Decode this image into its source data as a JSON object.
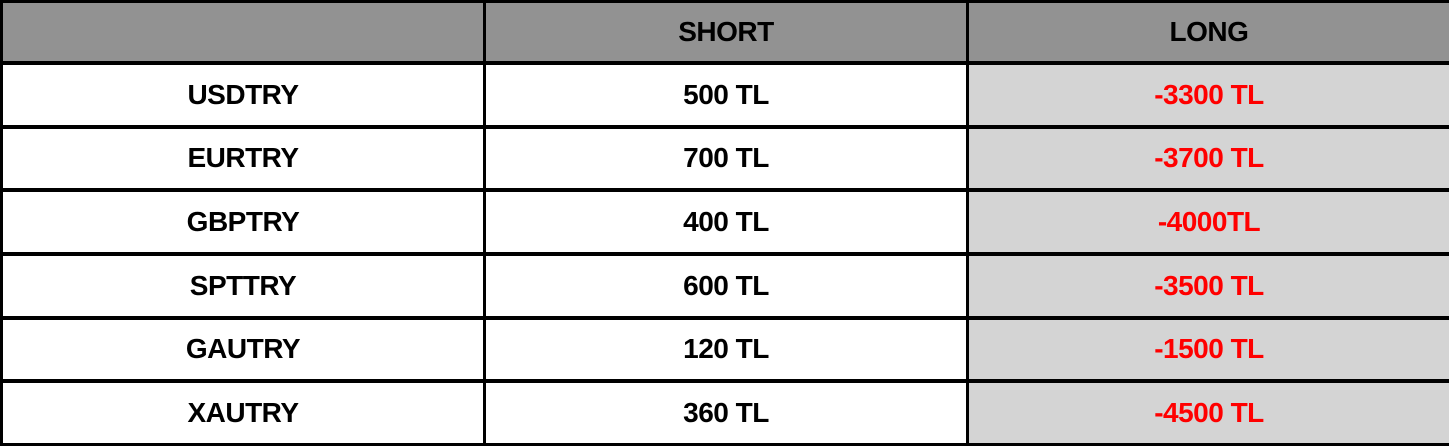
{
  "table": {
    "headers": [
      "",
      "SHORT",
      "LONG"
    ],
    "rows": [
      {
        "symbol": "USDTRY",
        "short": "500 TL",
        "long": "-3300 TL"
      },
      {
        "symbol": "EURTRY",
        "short": "700 TL",
        "long": "-3700 TL"
      },
      {
        "symbol": "GBPTRY",
        "short": "400 TL",
        "long": "-4000TL"
      },
      {
        "symbol": "SPTTRY",
        "short": "600 TL",
        "long": "-3500 TL"
      },
      {
        "symbol": "GAUTRY",
        "short": "120 TL",
        "long": "-1500 TL"
      },
      {
        "symbol": "XAUTRY",
        "short": "360 TL",
        "long": "-4500 TL"
      }
    ]
  },
  "colors": {
    "header_bg": "#929292",
    "long_bg": "#d4d4d4",
    "negative_text": "#ff0000"
  }
}
